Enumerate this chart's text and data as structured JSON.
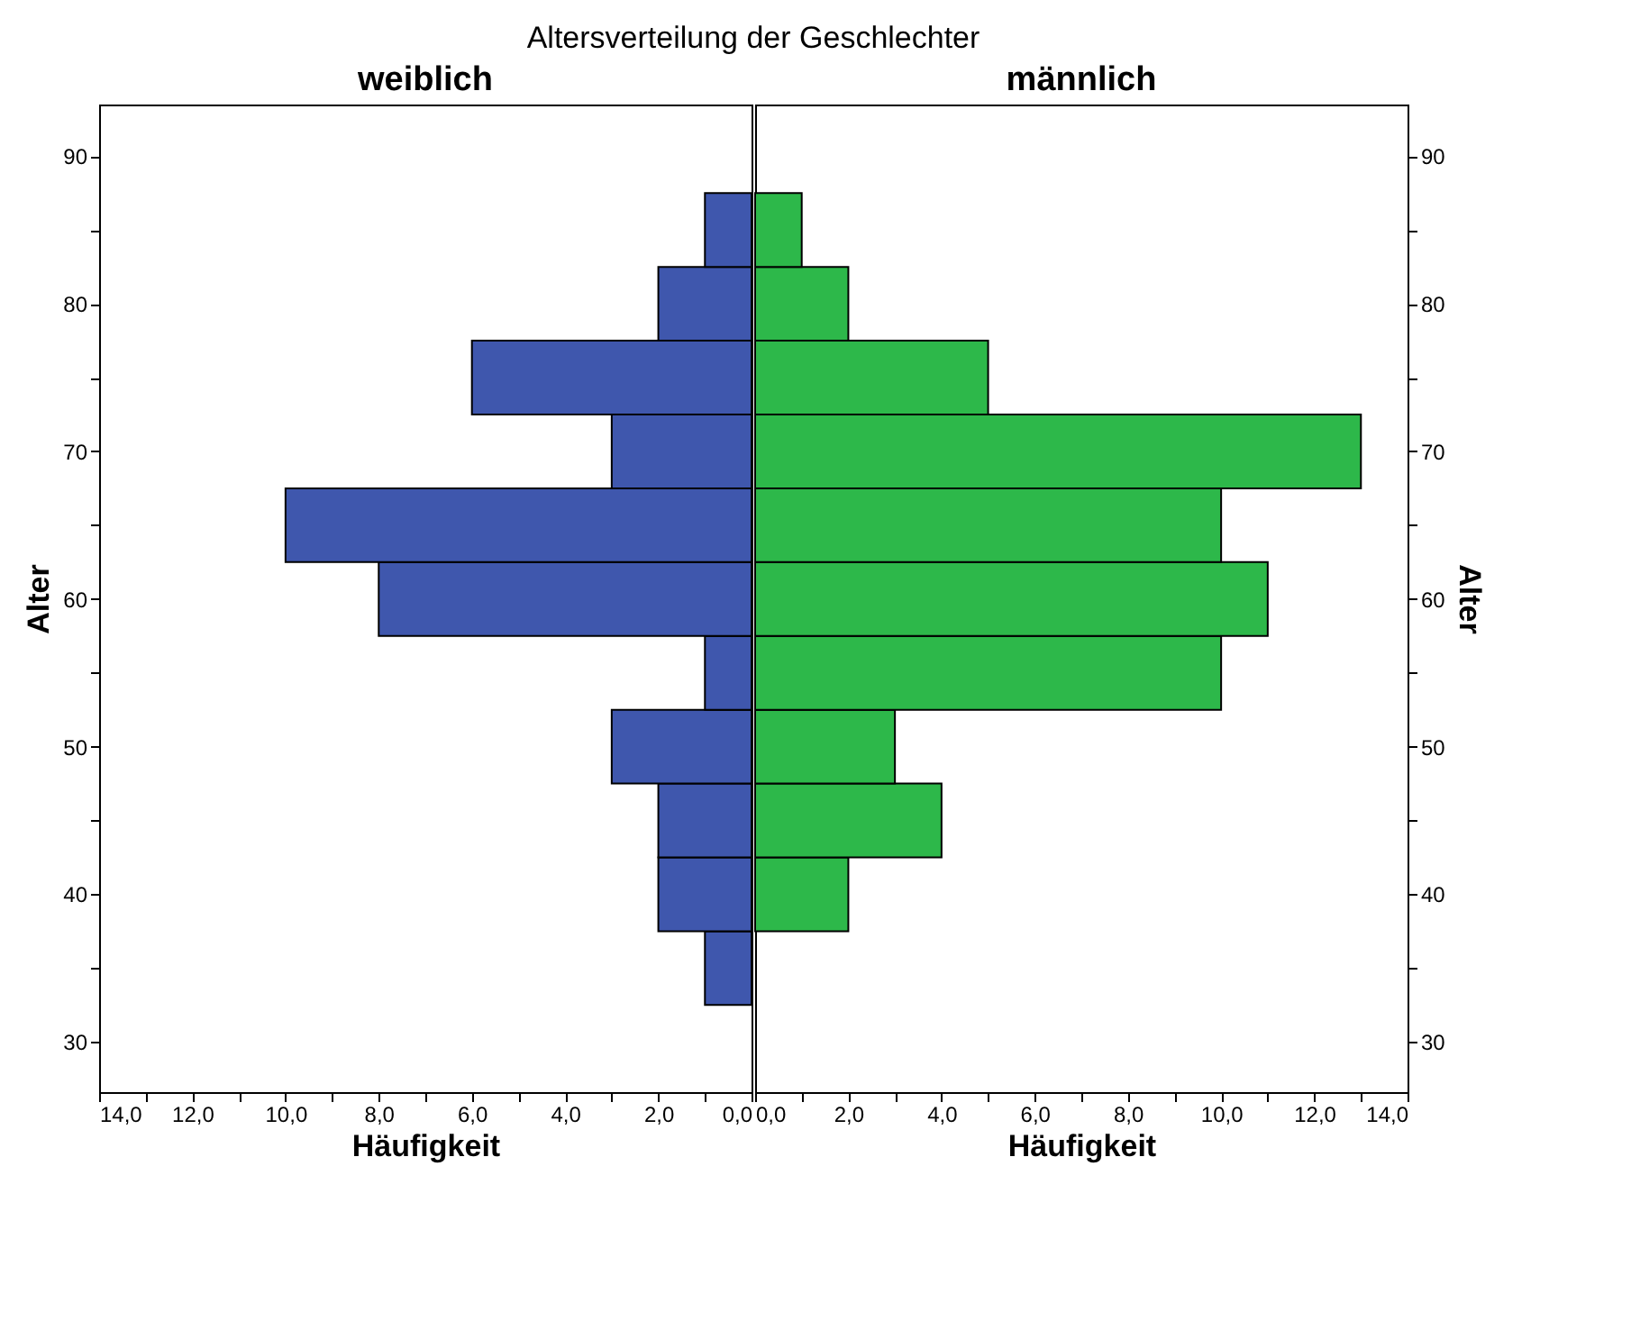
{
  "chart_data": [
    {
      "type": "histogram",
      "orientation": "horizontal",
      "title": "weiblich",
      "xlabel": "Häufigkeit",
      "ylabel": "Alter",
      "annotations": [
        "Altersverteilung der Geschlechter"
      ],
      "bins": [
        32.5,
        37.5,
        42.5,
        47.5,
        52.5,
        57.5,
        62.5,
        67.5,
        72.5,
        77.5,
        82.5,
        87.5
      ],
      "values": [
        1,
        2,
        2,
        3,
        1,
        8,
        10,
        3,
        6,
        2,
        1
      ],
      "color": "#3f57ad",
      "xlim": [
        14,
        0
      ],
      "xticks": [
        {
          "value": 14,
          "label": "14,0"
        },
        {
          "value": 13,
          "label": null
        },
        {
          "value": 12,
          "label": "12,0"
        },
        {
          "value": 11,
          "label": null
        },
        {
          "value": 10,
          "label": "10,0"
        },
        {
          "value": 9,
          "label": null
        },
        {
          "value": 8,
          "label": "8,0"
        },
        {
          "value": 7,
          "label": null
        },
        {
          "value": 6,
          "label": "6,0"
        },
        {
          "value": 5,
          "label": null
        },
        {
          "value": 4,
          "label": "4,0"
        },
        {
          "value": 3,
          "label": null
        },
        {
          "value": 2,
          "label": "2,0"
        },
        {
          "value": 1,
          "label": null
        },
        {
          "value": 0,
          "label": "0,0"
        }
      ],
      "ylim": [
        26.6,
        93.5
      ],
      "yticks": [
        30,
        {
          "value": 35,
          "label": null
        },
        40,
        {
          "value": 45,
          "label": null
        },
        50,
        {
          "value": 55,
          "label": null
        },
        60,
        {
          "value": 65,
          "label": null
        },
        70,
        {
          "value": 75,
          "label": null
        },
        80,
        {
          "value": 85,
          "label": null
        },
        90
      ],
      "grid": false
    },
    {
      "type": "histogram",
      "orientation": "horizontal",
      "title": "männlich",
      "xlabel": "Häufigkeit",
      "ylabel": "Alter",
      "bins": [
        32.5,
        37.5,
        42.5,
        47.5,
        52.5,
        57.5,
        62.5,
        67.5,
        72.5,
        77.5,
        82.5,
        87.5
      ],
      "values": [
        0,
        2,
        4,
        3,
        10,
        11,
        10,
        13,
        5,
        2,
        1
      ],
      "color": "#2db84a",
      "xlim": [
        0,
        14
      ],
      "xticks": [
        {
          "value": 0,
          "label": "0,0"
        },
        {
          "value": 1,
          "label": null
        },
        {
          "value": 2,
          "label": "2,0"
        },
        {
          "value": 3,
          "label": null
        },
        {
          "value": 4,
          "label": "4,0"
        },
        {
          "value": 5,
          "label": null
        },
        {
          "value": 6,
          "label": "6,0"
        },
        {
          "value": 7,
          "label": null
        },
        {
          "value": 8,
          "label": "8,0"
        },
        {
          "value": 9,
          "label": null
        },
        {
          "value": 10,
          "label": "10,0"
        },
        {
          "value": 11,
          "label": null
        },
        {
          "value": 12,
          "label": "12,0"
        },
        {
          "value": 13,
          "label": null
        },
        {
          "value": 14,
          "label": "14,0"
        }
      ],
      "ylim": [
        26.6,
        93.5
      ],
      "yticks": [
        30,
        {
          "value": 35,
          "label": null
        },
        40,
        {
          "value": 45,
          "label": null
        },
        50,
        {
          "value": 55,
          "label": null
        },
        60,
        {
          "value": 65,
          "label": null
        },
        70,
        {
          "value": 75,
          "label": null
        },
        80,
        {
          "value": 85,
          "label": null
        },
        90
      ],
      "grid": false
    }
  ]
}
